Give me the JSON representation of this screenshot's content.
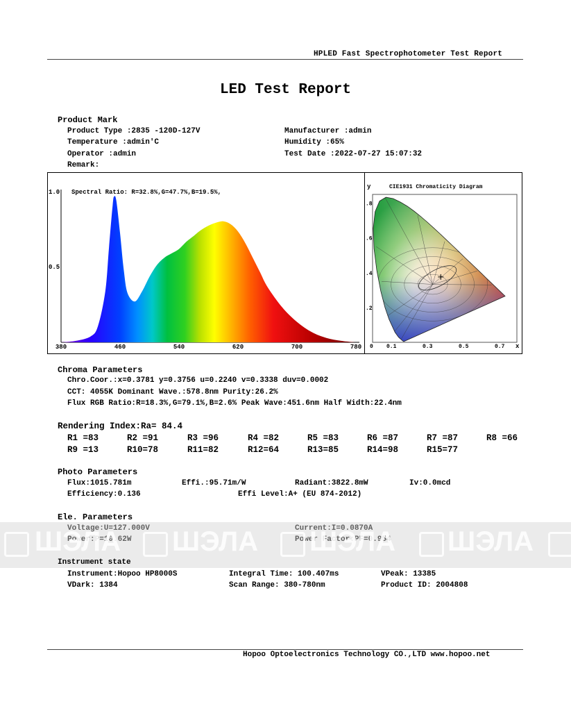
{
  "header": "HPLED Fast Spectrophotometer Test Report",
  "title": "LED Test Report",
  "product": {
    "section": "Product Mark",
    "left": [
      "Product Type :2835 -120D-127V",
      "Temperature :admin'C",
      "Operator :admin",
      "Remark:"
    ],
    "right": [
      "Manufacturer :admin",
      "Humidity :65%",
      "Test Date :2022-07-27 15:07:32"
    ]
  },
  "spectrum": {
    "ratio_label": "Spectral Ratio:  R=32.8%,G=47.7%,B=19.5%,",
    "y_ticks": [
      "1.0",
      "0.5"
    ],
    "x_ticks": [
      "380",
      "460",
      "540",
      "620",
      "700",
      "780"
    ]
  },
  "cie": {
    "title": "CIE1931 Chromaticity Diagram",
    "y_label": "y",
    "x_label": "x",
    "y_ticks": [
      ".8",
      ".6",
      ".4",
      ".2"
    ],
    "x_ticks": [
      "0",
      "0.1",
      "0.3",
      "0.5",
      "0.7"
    ],
    "point": {
      "x": 0.3781,
      "y": 0.3756
    }
  },
  "chart_data": {
    "type": "area",
    "title": "",
    "series_label": "Spectral Ratio:  R=32.8%,G=47.7%,B=19.5%,",
    "xlabel": "",
    "ylabel": "",
    "xlim": [
      380,
      780
    ],
    "ylim": [
      0,
      1.0
    ],
    "x": [
      380,
      400,
      420,
      430,
      440,
      445,
      450,
      452,
      455,
      460,
      465,
      470,
      480,
      490,
      500,
      510,
      520,
      530,
      540,
      550,
      560,
      570,
      580,
      590,
      600,
      610,
      620,
      630,
      640,
      650,
      660,
      680,
      700,
      720,
      740,
      760,
      780
    ],
    "values": [
      0.0,
      0.01,
      0.04,
      0.11,
      0.35,
      0.65,
      0.94,
      1.0,
      0.97,
      0.75,
      0.5,
      0.34,
      0.28,
      0.35,
      0.45,
      0.53,
      0.58,
      0.61,
      0.64,
      0.69,
      0.73,
      0.77,
      0.8,
      0.82,
      0.83,
      0.81,
      0.76,
      0.68,
      0.58,
      0.48,
      0.38,
      0.24,
      0.14,
      0.07,
      0.03,
      0.01,
      0.0
    ]
  },
  "chroma": {
    "section": "Chroma Parameters",
    "line1": "Chro.Coor.:x=0.3781  y=0.3756    u=0.2240  v=0.3338    duv=0.0002",
    "line2": "CCT: 4055K   Dominant Wave.:578.8nm   Purity:26.2%",
    "line3": "Flux RGB Ratio:R=18.3%,G=79.1%,B=2.6%   Peak Wave:451.6nm   Half Width:22.4nm"
  },
  "rendering": {
    "section": "Rendering Index:Ra= 84.4",
    "row1": [
      "R1 =83",
      "R2 =91",
      "R3 =96",
      "R4 =82",
      "R5 =83",
      "R6 =87",
      "R7 =87",
      "R8 =66"
    ],
    "row2": [
      "R9 =13",
      "R10=78",
      "R11=82",
      "R12=64",
      "R13=85",
      "R14=98",
      "R15=77"
    ]
  },
  "photo": {
    "section": "Photo Parameters",
    "flux": "Flux:1015.781m",
    "effi": "Effi.:95.71m/W",
    "radiant": "Radiant:3822.8mW",
    "iv": "Iv:0.0mcd",
    "efficiency": "Efficiency:0.136",
    "level": "Effi Level:A+ (EU 874-2012)"
  },
  "ele": {
    "section": "Ele. Parameters",
    "voltage": "Voltage:U=127.000V",
    "current": "Current:I=0.0870A",
    "power": "Power:P=10.62W",
    "pf": "Power Factor:PF=0.954"
  },
  "instrument": {
    "section": "Instrument state",
    "name": "Instrument:Hopoo HP8000S",
    "integral": "Integral Time: 100.407ms",
    "vpeak": "VPeak: 13385",
    "vdark": "VDark: 1384",
    "scan": "Scan Range: 380-780nm",
    "pid": "Product ID: 2004808"
  },
  "watermark": "ШЭЛА",
  "footer": "Hopoo Optoelectronics Technology CO.,LTD  www.hopoo.net"
}
